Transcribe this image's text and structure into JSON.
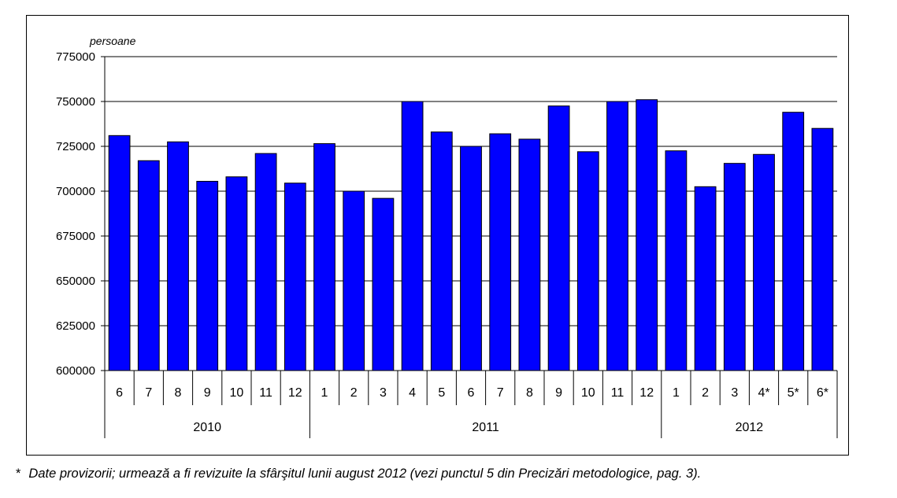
{
  "chart_data": {
    "type": "bar",
    "unit_label": "persoane",
    "ylim": [
      600000,
      775000
    ],
    "yticks": [
      600000,
      625000,
      650000,
      675000,
      700000,
      725000,
      750000,
      775000
    ],
    "grid": true,
    "bar_color": "#0000ff",
    "categories": [
      "6",
      "7",
      "8",
      "9",
      "10",
      "11",
      "12",
      "1",
      "2",
      "3",
      "4",
      "5",
      "6",
      "7",
      "8",
      "9",
      "10",
      "11",
      "12",
      "1",
      "2",
      "3",
      "4*",
      "5*",
      "6*"
    ],
    "values": [
      731000,
      717000,
      727500,
      705500,
      708000,
      721000,
      704500,
      726500,
      700000,
      696000,
      750000,
      733000,
      725000,
      732000,
      729000,
      747500,
      722000,
      750000,
      751000,
      722500,
      702500,
      715500,
      720500,
      744000,
      735000
    ],
    "year_groups": [
      {
        "label": "2010",
        "count": 7
      },
      {
        "label": "2011",
        "count": 12
      },
      {
        "label": "2012",
        "count": 6
      }
    ]
  },
  "footnote": {
    "marker": "*",
    "text": "Date provizorii; urmează a fi revizuite la sfârşitul lunii august 2012 (vezi punctul 5 din Precizări metodologice, pag. 3)."
  }
}
